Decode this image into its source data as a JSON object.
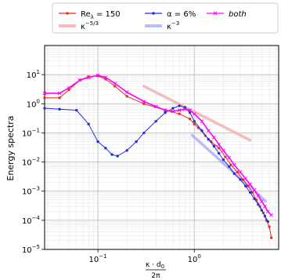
{
  "chart_data": {
    "type": "line",
    "xlabel_num": "κ · d",
    "xlabel_num_sub": "0",
    "xlabel_den": "2π",
    "ylabel": "Energy spectra",
    "xscale": "log",
    "yscale": "log",
    "xlim": [
      0.028,
      7.5
    ],
    "ylim": [
      1e-05,
      100
    ],
    "grid": true,
    "legend_position": "top",
    "x_ticks": [
      {
        "value": 0.1,
        "base": "10",
        "exp": "−1"
      },
      {
        "value": 1,
        "base": "10",
        "exp": "0"
      }
    ],
    "y_ticks": [
      {
        "value": 10,
        "base": "10",
        "exp": "1"
      },
      {
        "value": 1,
        "base": "10",
        "exp": "0"
      },
      {
        "value": 0.1,
        "base": "10",
        "exp": "−1"
      },
      {
        "value": 0.01,
        "base": "10",
        "exp": "−2"
      },
      {
        "value": 0.001,
        "base": "10",
        "exp": "−3"
      },
      {
        "value": 0.0001,
        "base": "10",
        "exp": "−4"
      },
      {
        "value": 1e-05,
        "base": "10",
        "exp": "−5"
      }
    ],
    "series": [
      {
        "name": "Re_λ = 150",
        "color": "#e8281e",
        "marker": "square",
        "x": [
          0.028,
          0.04,
          0.05,
          0.065,
          0.08,
          0.1,
          0.12,
          0.15,
          0.2,
          0.3,
          0.5,
          0.7,
          0.9,
          1.0,
          1.1,
          1.3,
          1.5,
          1.8,
          2.1,
          2.4,
          2.8,
          3.2,
          3.6,
          4.0,
          4.4,
          4.8,
          5.2,
          5.6,
          6.0,
          6.3
        ],
        "y": [
          1.6,
          1.6,
          3.0,
          6.5,
          8.5,
          9.0,
          7.0,
          4.0,
          1.8,
          1.0,
          0.6,
          0.45,
          0.3,
          0.2,
          0.15,
          0.08,
          0.05,
          0.03,
          0.015,
          0.008,
          0.0045,
          0.0025,
          0.0015,
          0.0009,
          0.0005,
          0.0003,
          0.00018,
          0.0001,
          6e-05,
          2.5e-05
        ]
      },
      {
        "name": "α = 6%",
        "color": "#1f2fe0",
        "marker": "circle",
        "x": [
          0.028,
          0.04,
          0.06,
          0.08,
          0.1,
          0.12,
          0.14,
          0.16,
          0.2,
          0.25,
          0.3,
          0.4,
          0.5,
          0.6,
          0.7,
          0.8,
          0.9,
          1.0,
          1.2,
          1.4,
          1.6,
          1.8,
          2.0,
          2.3,
          2.6,
          3.0,
          3.4,
          3.8,
          4.2,
          4.6,
          5.0,
          5.4,
          5.8
        ],
        "y": [
          0.7,
          0.65,
          0.6,
          0.2,
          0.05,
          0.03,
          0.018,
          0.016,
          0.025,
          0.05,
          0.1,
          0.25,
          0.5,
          0.7,
          0.85,
          0.75,
          0.5,
          0.25,
          0.12,
          0.06,
          0.035,
          0.02,
          0.012,
          0.007,
          0.004,
          0.0025,
          0.0015,
          0.0009,
          0.00055,
          0.00035,
          0.00022,
          0.00014,
          9e-05
        ]
      },
      {
        "name": "both",
        "color": "#ff00ff",
        "marker": "x",
        "x": [
          0.028,
          0.04,
          0.05,
          0.065,
          0.08,
          0.1,
          0.12,
          0.15,
          0.2,
          0.3,
          0.4,
          0.5,
          0.6,
          0.7,
          0.8,
          0.9,
          1.0,
          1.2,
          1.4,
          1.6,
          1.8,
          2.0,
          2.3,
          2.6,
          3.0,
          3.4,
          3.8,
          4.2,
          4.6,
          5.0,
          5.4,
          5.8,
          6.3
        ],
        "y": [
          2.3,
          2.3,
          3.5,
          6.5,
          8.0,
          9.5,
          8.0,
          5.0,
          2.5,
          1.2,
          0.8,
          0.6,
          0.55,
          0.6,
          0.65,
          0.6,
          0.45,
          0.25,
          0.12,
          0.07,
          0.04,
          0.025,
          0.014,
          0.008,
          0.0045,
          0.0027,
          0.0017,
          0.0011,
          0.0007,
          0.00045,
          0.0003,
          0.0002,
          0.00015
        ]
      },
      {
        "name": "κ^{−5/3}",
        "color": "#f4a6a6",
        "marker": "none",
        "x": [
          0.3,
          3.8
        ],
        "y": [
          4.0,
          0.056
        ]
      },
      {
        "name": "κ^{−3}",
        "color": "#a6a6f4",
        "marker": "none",
        "x": [
          0.95,
          5.5
        ],
        "y": [
          0.083,
          0.00045
        ]
      }
    ],
    "legend": [
      {
        "main": "Re",
        "sub": "λ",
        "rest": " = 150",
        "color": "#e8281e",
        "style": "marker-line",
        "marker": "square"
      },
      {
        "main": "α = 6%",
        "color": "#1f2fe0",
        "style": "marker-line",
        "marker": "circle"
      },
      {
        "main": "both",
        "color": "#ff00ff",
        "style": "marker-line",
        "marker": "x",
        "italic": true
      },
      {
        "main": "κ",
        "sup": "−5/3",
        "color": "#f4a6a6",
        "style": "thick"
      },
      {
        "main": "κ",
        "sup": "−3",
        "color": "#a6a6f4",
        "style": "thick"
      }
    ]
  }
}
